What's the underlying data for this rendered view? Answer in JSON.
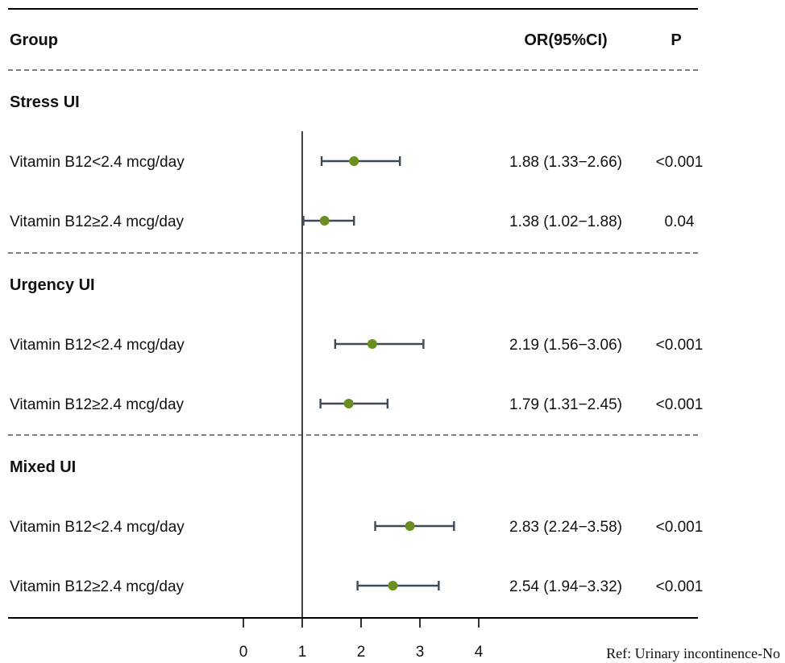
{
  "header": {
    "group": "Group",
    "or": "OR(95%CI)",
    "p": "P"
  },
  "note": "Ref: Urinary incontinence-No",
  "chart_data": {
    "type": "forest",
    "x_axis": {
      "ticks": [
        0,
        1,
        2,
        3,
        4
      ],
      "reference_line": 1
    },
    "colors": {
      "point": "#6b8e23",
      "ci_line": "#3f4a55",
      "axis": "#444444"
    },
    "groups": [
      {
        "name": "Stress UI",
        "rows": [
          {
            "label": "Vitamin B12<2.4 mcg/day",
            "or": 1.88,
            "lower": 1.33,
            "upper": 2.66,
            "text": "1.88 (1.33−2.66)",
            "p": "<0.001"
          },
          {
            "label": "Vitamin B12≥2.4 mcg/day",
            "or": 1.38,
            "lower": 1.02,
            "upper": 1.88,
            "text": "1.38 (1.02−1.88)",
            "p": "0.04"
          }
        ]
      },
      {
        "name": "Urgency UI",
        "rows": [
          {
            "label": "Vitamin B12<2.4 mcg/day",
            "or": 2.19,
            "lower": 1.56,
            "upper": 3.06,
            "text": "2.19 (1.56−3.06)",
            "p": "<0.001"
          },
          {
            "label": "Vitamin B12≥2.4 mcg/day",
            "or": 1.79,
            "lower": 1.31,
            "upper": 2.45,
            "text": "1.79 (1.31−2.45)",
            "p": "<0.001"
          }
        ]
      },
      {
        "name": "Mixed UI",
        "rows": [
          {
            "label": "Vitamin B12<2.4 mcg/day",
            "or": 2.83,
            "lower": 2.24,
            "upper": 3.58,
            "text": "2.83 (2.24−3.58)",
            "p": "<0.001"
          },
          {
            "label": "Vitamin B12≥2.4 mcg/day",
            "or": 2.54,
            "lower": 1.94,
            "upper": 3.32,
            "text": "2.54 (1.94−3.32)",
            "p": "<0.001"
          }
        ]
      }
    ]
  }
}
